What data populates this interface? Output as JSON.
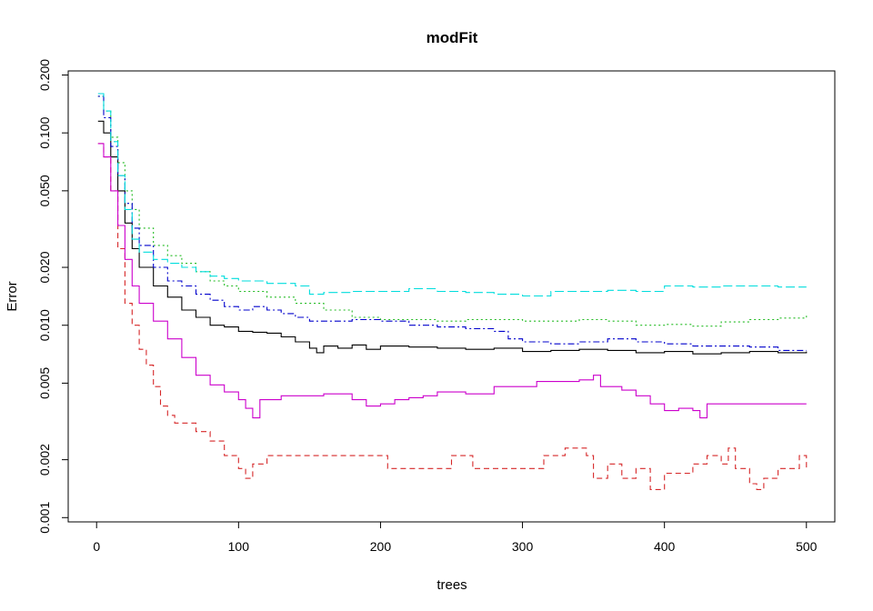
{
  "chart_data": {
    "type": "line",
    "title": "modFit",
    "xlabel": "trees",
    "ylabel": "Error",
    "xlim": [
      -20,
      520
    ],
    "ylim": [
      0.00095,
      0.21
    ],
    "y_scale": "log",
    "grid": false,
    "legend": "none",
    "x_ticks": [
      0,
      100,
      200,
      300,
      400,
      500
    ],
    "x_tick_labels": [
      "0",
      "100",
      "200",
      "300",
      "400",
      "500"
    ],
    "y_ticks": [
      0.001,
      0.002,
      0.005,
      0.01,
      0.02,
      0.05,
      0.1,
      0.2
    ],
    "y_tick_labels": [
      "0.001",
      "0.002",
      "0.005",
      "0.010",
      "0.020",
      "0.050",
      "0.100",
      "0.200"
    ],
    "series": [
      {
        "color": "#000000",
        "dash": "solid",
        "points": [
          [
            1,
            0.115
          ],
          [
            5,
            0.1
          ],
          [
            10,
            0.075
          ],
          [
            15,
            0.05
          ],
          [
            20,
            0.034
          ],
          [
            25,
            0.025
          ],
          [
            30,
            0.02
          ],
          [
            40,
            0.016
          ],
          [
            50,
            0.014
          ],
          [
            60,
            0.012
          ],
          [
            70,
            0.011
          ],
          [
            80,
            0.01
          ],
          [
            90,
            0.0098
          ],
          [
            100,
            0.0093
          ],
          [
            110,
            0.0092
          ],
          [
            120,
            0.0091
          ],
          [
            130,
            0.0087
          ],
          [
            140,
            0.0082
          ],
          [
            150,
            0.0076
          ],
          [
            155,
            0.0072
          ],
          [
            160,
            0.0078
          ],
          [
            170,
            0.0076
          ],
          [
            180,
            0.0079
          ],
          [
            190,
            0.0075
          ],
          [
            200,
            0.0078
          ],
          [
            220,
            0.0077
          ],
          [
            240,
            0.0076
          ],
          [
            260,
            0.0075
          ],
          [
            280,
            0.0076
          ],
          [
            300,
            0.0073
          ],
          [
            320,
            0.0074
          ],
          [
            340,
            0.0075
          ],
          [
            360,
            0.0074
          ],
          [
            380,
            0.0072
          ],
          [
            400,
            0.0073
          ],
          [
            420,
            0.0071
          ],
          [
            440,
            0.0072
          ],
          [
            460,
            0.0073
          ],
          [
            480,
            0.0072
          ],
          [
            500,
            0.0073
          ]
        ]
      },
      {
        "color": "#df536b",
        "dash": "dashed",
        "stroke": "#d62728",
        "points": [
          [
            1,
            0.088
          ],
          [
            5,
            0.075
          ],
          [
            10,
            0.05
          ],
          [
            15,
            0.025
          ],
          [
            20,
            0.013
          ],
          [
            25,
            0.01
          ],
          [
            30,
            0.0075
          ],
          [
            35,
            0.0062
          ],
          [
            40,
            0.0048
          ],
          [
            45,
            0.0038
          ],
          [
            50,
            0.0034
          ],
          [
            55,
            0.0031
          ],
          [
            60,
            0.0031
          ],
          [
            70,
            0.0028
          ],
          [
            80,
            0.0025
          ],
          [
            90,
            0.0021
          ],
          [
            100,
            0.0018
          ],
          [
            105,
            0.0016
          ],
          [
            110,
            0.0019
          ],
          [
            120,
            0.0021
          ],
          [
            150,
            0.0021
          ],
          [
            200,
            0.0021
          ],
          [
            205,
            0.0018
          ],
          [
            240,
            0.0018
          ],
          [
            250,
            0.0021
          ],
          [
            260,
            0.0021
          ],
          [
            265,
            0.0018
          ],
          [
            310,
            0.0018
          ],
          [
            315,
            0.0021
          ],
          [
            330,
            0.0023
          ],
          [
            345,
            0.0021
          ],
          [
            350,
            0.0016
          ],
          [
            360,
            0.0019
          ],
          [
            370,
            0.0016
          ],
          [
            380,
            0.0018
          ],
          [
            390,
            0.0014
          ],
          [
            400,
            0.0017
          ],
          [
            410,
            0.0017
          ],
          [
            420,
            0.0019
          ],
          [
            430,
            0.0021
          ],
          [
            440,
            0.0019
          ],
          [
            445,
            0.0023
          ],
          [
            450,
            0.0018
          ],
          [
            460,
            0.0015
          ],
          [
            465,
            0.0014
          ],
          [
            470,
            0.0016
          ],
          [
            480,
            0.0018
          ],
          [
            490,
            0.0018
          ],
          [
            495,
            0.0021
          ],
          [
            500,
            0.0018
          ]
        ]
      },
      {
        "color": "#22bb22",
        "dash": "dotted",
        "points": [
          [
            1,
            0.155
          ],
          [
            5,
            0.13
          ],
          [
            10,
            0.095
          ],
          [
            15,
            0.07
          ],
          [
            20,
            0.05
          ],
          [
            25,
            0.04
          ],
          [
            30,
            0.032
          ],
          [
            40,
            0.026
          ],
          [
            50,
            0.023
          ],
          [
            60,
            0.021
          ],
          [
            70,
            0.019
          ],
          [
            80,
            0.017
          ],
          [
            90,
            0.016
          ],
          [
            100,
            0.015
          ],
          [
            120,
            0.014
          ],
          [
            140,
            0.013
          ],
          [
            160,
            0.012
          ],
          [
            180,
            0.011
          ],
          [
            200,
            0.0107
          ],
          [
            220,
            0.0107
          ],
          [
            240,
            0.0105
          ],
          [
            260,
            0.0107
          ],
          [
            280,
            0.0107
          ],
          [
            300,
            0.0105
          ],
          [
            320,
            0.0105
          ],
          [
            340,
            0.0107
          ],
          [
            360,
            0.0105
          ],
          [
            380,
            0.01
          ],
          [
            400,
            0.0101
          ],
          [
            420,
            0.0099
          ],
          [
            440,
            0.0104
          ],
          [
            460,
            0.0107
          ],
          [
            480,
            0.0109
          ],
          [
            500,
            0.0112
          ]
        ]
      },
      {
        "color": "#0000cc",
        "dash": "dotdash",
        "points": [
          [
            1,
            0.155
          ],
          [
            5,
            0.12
          ],
          [
            10,
            0.085
          ],
          [
            15,
            0.06
          ],
          [
            20,
            0.043
          ],
          [
            25,
            0.032
          ],
          [
            30,
            0.026
          ],
          [
            40,
            0.02
          ],
          [
            50,
            0.017
          ],
          [
            60,
            0.016
          ],
          [
            70,
            0.0145
          ],
          [
            80,
            0.0135
          ],
          [
            90,
            0.0125
          ],
          [
            100,
            0.012
          ],
          [
            110,
            0.0125
          ],
          [
            120,
            0.012
          ],
          [
            130,
            0.0115
          ],
          [
            140,
            0.011
          ],
          [
            150,
            0.0105
          ],
          [
            160,
            0.0105
          ],
          [
            180,
            0.0107
          ],
          [
            200,
            0.0105
          ],
          [
            220,
            0.01
          ],
          [
            240,
            0.0098
          ],
          [
            260,
            0.0096
          ],
          [
            280,
            0.0093
          ],
          [
            290,
            0.0085
          ],
          [
            300,
            0.0082
          ],
          [
            320,
            0.008
          ],
          [
            340,
            0.0082
          ],
          [
            360,
            0.0085
          ],
          [
            380,
            0.0082
          ],
          [
            400,
            0.008
          ],
          [
            420,
            0.0078
          ],
          [
            440,
            0.0078
          ],
          [
            460,
            0.0077
          ],
          [
            480,
            0.0074
          ],
          [
            500,
            0.0074
          ]
        ]
      },
      {
        "color": "#00dddd",
        "dash": "longdash",
        "points": [
          [
            1,
            0.16
          ],
          [
            5,
            0.13
          ],
          [
            10,
            0.09
          ],
          [
            15,
            0.06
          ],
          [
            20,
            0.04
          ],
          [
            25,
            0.028
          ],
          [
            30,
            0.024
          ],
          [
            40,
            0.022
          ],
          [
            50,
            0.021
          ],
          [
            60,
            0.02
          ],
          [
            70,
            0.019
          ],
          [
            80,
            0.018
          ],
          [
            90,
            0.0175
          ],
          [
            100,
            0.017
          ],
          [
            120,
            0.0165
          ],
          [
            140,
            0.016
          ],
          [
            150,
            0.0145
          ],
          [
            160,
            0.0148
          ],
          [
            180,
            0.015
          ],
          [
            200,
            0.015
          ],
          [
            220,
            0.0155
          ],
          [
            240,
            0.015
          ],
          [
            260,
            0.0148
          ],
          [
            280,
            0.0145
          ],
          [
            300,
            0.0142
          ],
          [
            320,
            0.015
          ],
          [
            340,
            0.015
          ],
          [
            360,
            0.0152
          ],
          [
            380,
            0.015
          ],
          [
            400,
            0.016
          ],
          [
            420,
            0.0158
          ],
          [
            440,
            0.016
          ],
          [
            460,
            0.016
          ],
          [
            480,
            0.0158
          ],
          [
            500,
            0.0158
          ]
        ]
      },
      {
        "color": "#cc00cc",
        "dash": "solid",
        "points": [
          [
            1,
            0.088
          ],
          [
            5,
            0.075
          ],
          [
            10,
            0.05
          ],
          [
            15,
            0.033
          ],
          [
            20,
            0.022
          ],
          [
            25,
            0.016
          ],
          [
            30,
            0.013
          ],
          [
            40,
            0.0105
          ],
          [
            50,
            0.0085
          ],
          [
            60,
            0.0068
          ],
          [
            70,
            0.0055
          ],
          [
            80,
            0.0049
          ],
          [
            90,
            0.0045
          ],
          [
            100,
            0.0041
          ],
          [
            105,
            0.0037
          ],
          [
            110,
            0.0033
          ],
          [
            115,
            0.0041
          ],
          [
            130,
            0.0043
          ],
          [
            150,
            0.0043
          ],
          [
            160,
            0.0044
          ],
          [
            180,
            0.0041
          ],
          [
            190,
            0.0038
          ],
          [
            200,
            0.0039
          ],
          [
            210,
            0.0041
          ],
          [
            220,
            0.0042
          ],
          [
            230,
            0.0043
          ],
          [
            240,
            0.0045
          ],
          [
            260,
            0.0044
          ],
          [
            280,
            0.0048
          ],
          [
            300,
            0.0048
          ],
          [
            310,
            0.0051
          ],
          [
            340,
            0.0052
          ],
          [
            350,
            0.0055
          ],
          [
            355,
            0.0048
          ],
          [
            370,
            0.0046
          ],
          [
            380,
            0.0043
          ],
          [
            390,
            0.0039
          ],
          [
            400,
            0.0036
          ],
          [
            410,
            0.0037
          ],
          [
            420,
            0.0036
          ],
          [
            425,
            0.0033
          ],
          [
            430,
            0.0039
          ],
          [
            440,
            0.0039
          ],
          [
            460,
            0.0039
          ],
          [
            480,
            0.0039
          ],
          [
            500,
            0.0039
          ]
        ]
      }
    ]
  }
}
